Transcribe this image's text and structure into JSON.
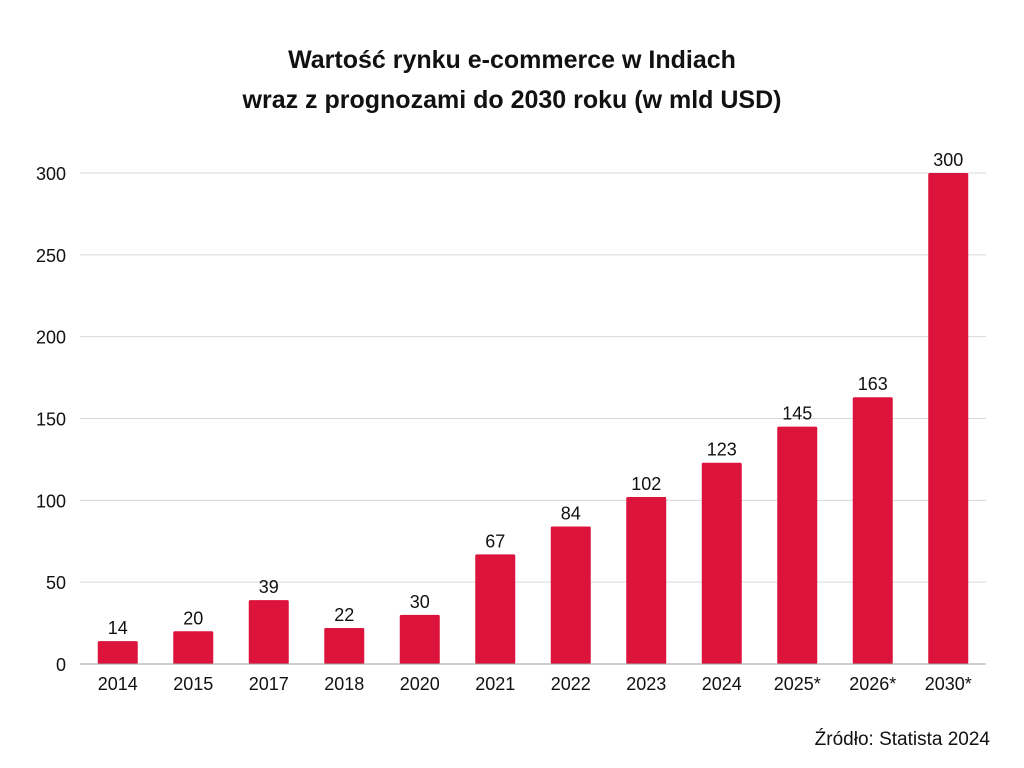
{
  "chart_data": {
    "type": "bar",
    "title_lines": [
      "Wartość rynku e-commerce w Indiach",
      "wraz z prognozami do 2030 roku (w mld USD)"
    ],
    "categories": [
      "2014",
      "2015",
      "2017",
      "2018",
      "2020",
      "2021",
      "2022",
      "2023",
      "2024",
      "2025*",
      "2026*",
      "2030*"
    ],
    "values": [
      14,
      20,
      39,
      22,
      30,
      67,
      84,
      102,
      123,
      145,
      163,
      300
    ],
    "data_labels": [
      "14",
      "20",
      "39",
      "22",
      "30",
      "67",
      "84",
      "102",
      "123",
      "145",
      "163",
      "300"
    ],
    "ylim": [
      0,
      300
    ],
    "yticks": [
      0,
      50,
      100,
      150,
      200,
      250,
      300
    ],
    "ytick_labels": [
      "0",
      "50",
      "100",
      "150",
      "200",
      "250",
      "300"
    ],
    "grid": true,
    "legend": "none",
    "bar_color": "#DC143C",
    "xlabel": "",
    "ylabel": ""
  },
  "source": "Źródło: Statista 2024"
}
